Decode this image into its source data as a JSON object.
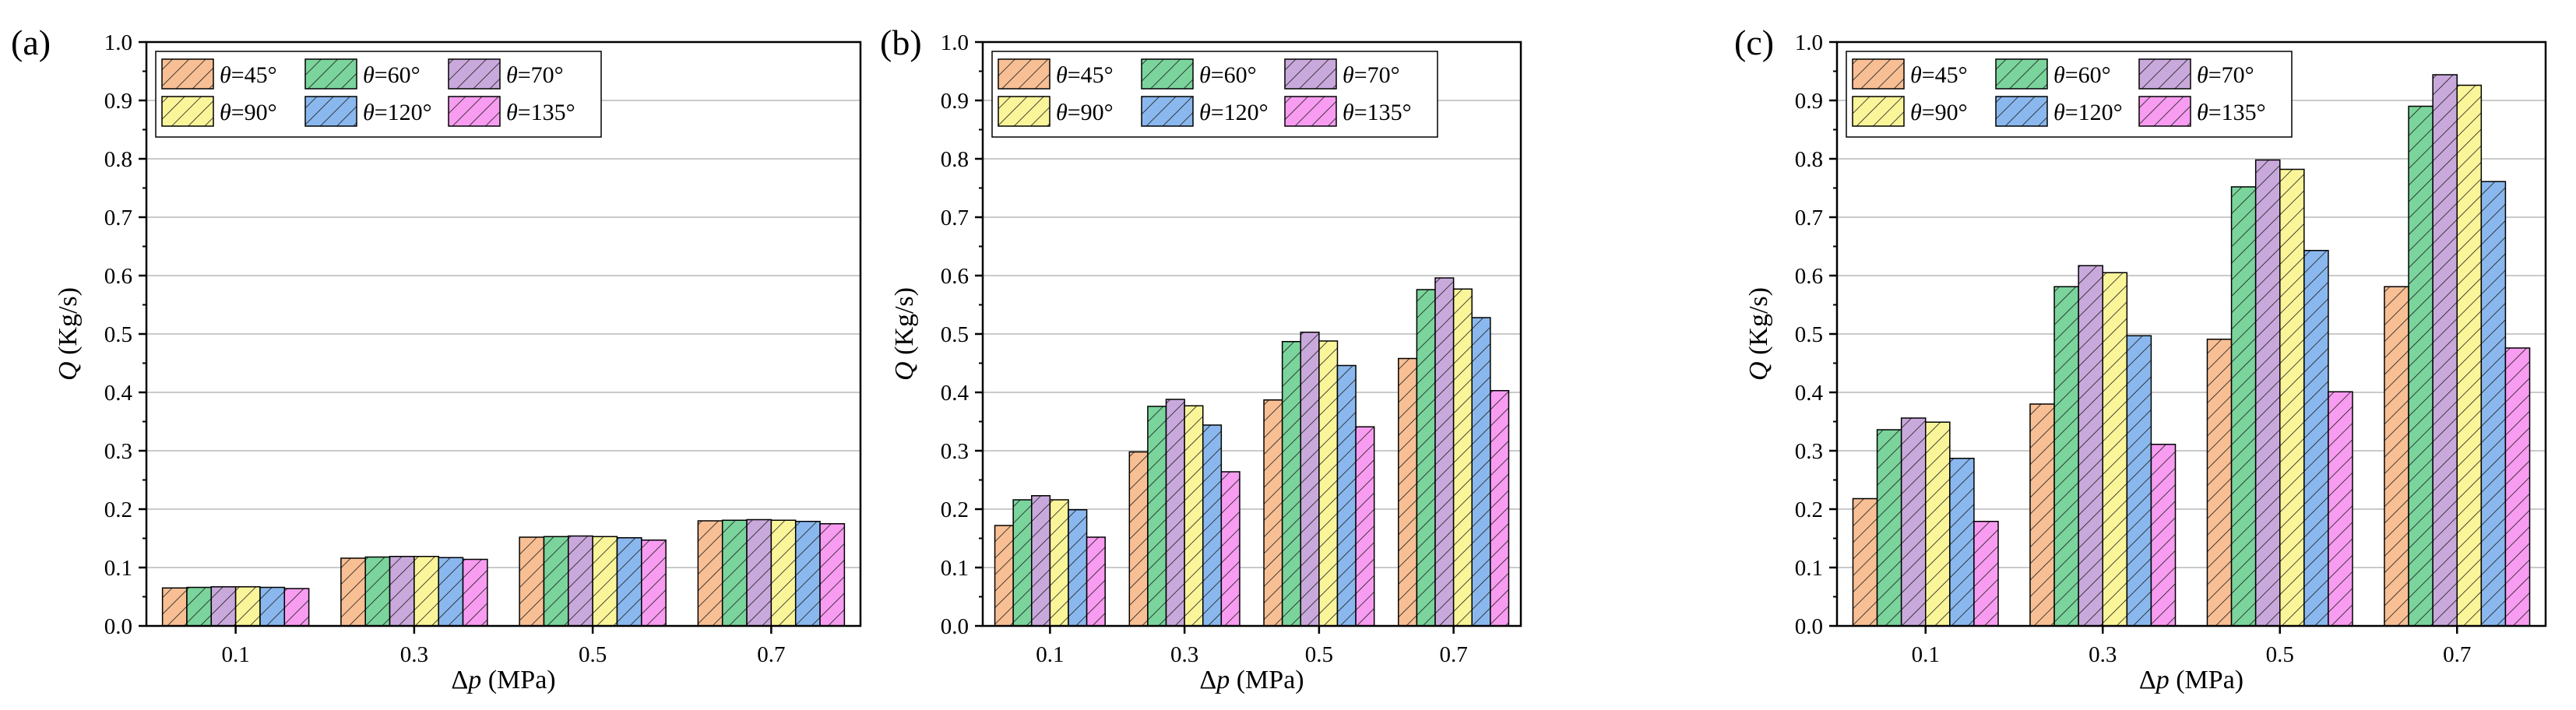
{
  "chart_data": [
    {
      "panel_label": "(a)",
      "type": "bar",
      "categories": [
        "0.1",
        "0.3",
        "0.5",
        "0.7"
      ],
      "xlabel_pre": "Δ",
      "xlabel_var": "p",
      "xlabel_post": " (MPa)",
      "ylabel_var": "Q",
      "ylabel_post": " (Kg/s)",
      "ylim": [
        0,
        1.0
      ],
      "yticks": [
        "0.0",
        "0.1",
        "0.2",
        "0.3",
        "0.4",
        "0.5",
        "0.6",
        "0.7",
        "0.8",
        "0.9",
        "1.0"
      ],
      "grid": true,
      "legend_position": "top-left",
      "series": [
        {
          "name": "θ=45°",
          "values": [
            0.065,
            0.116,
            0.152,
            0.18
          ]
        },
        {
          "name": "θ=60°",
          "values": [
            0.066,
            0.118,
            0.153,
            0.181
          ]
        },
        {
          "name": "θ=70°",
          "values": [
            0.067,
            0.119,
            0.154,
            0.182
          ]
        },
        {
          "name": "θ=90°",
          "values": [
            0.067,
            0.119,
            0.153,
            0.181
          ]
        },
        {
          "name": "θ=120°",
          "values": [
            0.066,
            0.117,
            0.151,
            0.179
          ]
        },
        {
          "name": "θ=135°",
          "values": [
            0.064,
            0.114,
            0.147,
            0.175
          ]
        }
      ]
    },
    {
      "panel_label": "(b)",
      "type": "bar",
      "categories": [
        "0.1",
        "0.3",
        "0.5",
        "0.7"
      ],
      "xlabel_pre": "Δ",
      "xlabel_var": "p",
      "xlabel_post": " (MPa)",
      "ylabel_var": "Q",
      "ylabel_post": " (Kg/s)",
      "ylim": [
        0,
        1.0
      ],
      "yticks": [
        "0.0",
        "0.1",
        "0.2",
        "0.3",
        "0.4",
        "0.5",
        "0.6",
        "0.7",
        "0.8",
        "0.9",
        "1.0"
      ],
      "grid": true,
      "legend_position": "top-left",
      "series": [
        {
          "name": "θ=45°",
          "values": [
            0.172,
            0.298,
            0.387,
            0.458
          ]
        },
        {
          "name": "θ=60°",
          "values": [
            0.216,
            0.376,
            0.487,
            0.576
          ]
        },
        {
          "name": "θ=70°",
          "values": [
            0.223,
            0.388,
            0.503,
            0.596
          ]
        },
        {
          "name": "θ=90°",
          "values": [
            0.216,
            0.377,
            0.488,
            0.577
          ]
        },
        {
          "name": "θ=120°",
          "values": [
            0.199,
            0.344,
            0.446,
            0.528
          ]
        },
        {
          "name": "θ=135°",
          "values": [
            0.152,
            0.264,
            0.341,
            0.403
          ]
        }
      ]
    },
    {
      "panel_label": "(c)",
      "type": "bar",
      "categories": [
        "0.1",
        "0.3",
        "0.5",
        "0.7"
      ],
      "xlabel_pre": "Δ",
      "xlabel_var": "p",
      "xlabel_post": " (MPa)",
      "ylabel_var": "Q",
      "ylabel_post": " (Kg/s)",
      "ylim": [
        0,
        1.0
      ],
      "yticks": [
        "0.0",
        "0.1",
        "0.2",
        "0.3",
        "0.4",
        "0.5",
        "0.6",
        "0.7",
        "0.8",
        "0.9",
        "1.0"
      ],
      "grid": true,
      "legend_position": "top-left",
      "series": [
        {
          "name": "θ=45°",
          "values": [
            0.218,
            0.38,
            0.491,
            0.581
          ]
        },
        {
          "name": "θ=60°",
          "values": [
            0.336,
            0.581,
            0.752,
            0.89
          ]
        },
        {
          "name": "θ=70°",
          "values": [
            0.356,
            0.617,
            0.798,
            0.944
          ]
        },
        {
          "name": "θ=90°",
          "values": [
            0.349,
            0.605,
            0.782,
            0.926
          ]
        },
        {
          "name": "θ=120°",
          "values": [
            0.287,
            0.497,
            0.643,
            0.761
          ]
        },
        {
          "name": "θ=135°",
          "values": [
            0.179,
            0.311,
            0.401,
            0.476
          ]
        }
      ]
    }
  ],
  "series_colors": [
    "#f8bf94",
    "#7ad49c",
    "#c9a9dc",
    "#fbf59a",
    "#8ab8ee",
    "#f79cf0"
  ],
  "hatch_color": "#1a1a1a",
  "axis_color": "#000000",
  "grid_color": "#b8b8b8"
}
